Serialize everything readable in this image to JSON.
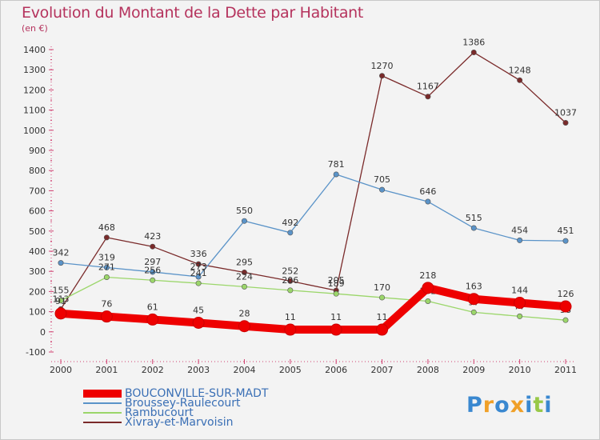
{
  "title": "Evolution du Montant de la Dette par Habitant",
  "subtitle": "(en €)",
  "logo": {
    "letters": [
      "P",
      "r",
      "o",
      "x",
      "i",
      "t",
      "i"
    ],
    "colors": [
      "#3a88d0",
      "#f0a028",
      "#3a88d0",
      "#f0a028",
      "#3a88d0",
      "#98c848",
      "#3a88d0"
    ]
  },
  "chart_data": {
    "type": "line",
    "x": [
      "2000",
      "2001",
      "2002",
      "2003",
      "2004",
      "2005",
      "2006",
      "2007",
      "2008",
      "2009",
      "2010",
      "2011"
    ],
    "ylim": [
      -100,
      1400
    ],
    "yticks": [
      -100,
      0,
      100,
      200,
      300,
      400,
      500,
      600,
      700,
      800,
      900,
      1000,
      1100,
      1200,
      1300,
      1400
    ],
    "grid": false,
    "legend": "bottom-left",
    "series": [
      {
        "name": "Xivray-et-Marvoisin",
        "color": "#7a2a2a",
        "values": [
          113,
          468,
          423,
          336,
          295,
          252,
          205,
          1270,
          1167,
          1386,
          1248,
          1037
        ],
        "labels": [
          "113",
          "468",
          "423",
          "336",
          "295",
          "252",
          "205",
          "1270",
          "1167",
          "1386",
          "1248",
          "1037"
        ]
      },
      {
        "name": "Broussey-Raulecourt",
        "color": "#5a93c8",
        "values": [
          342,
          319,
          297,
          273,
          550,
          492,
          781,
          705,
          646,
          515,
          454,
          451
        ],
        "labels": [
          "342",
          "319",
          "297",
          "273",
          "550",
          "492",
          "781",
          "705",
          "646",
          "515",
          "454",
          "451"
        ]
      },
      {
        "name": "Rambucourt",
        "color": "#9bd66a",
        "values": [
          155,
          271,
          256,
          241,
          224,
          206,
          189,
          170,
          152,
          97,
          77,
          58
        ],
        "labels": [
          "155",
          "271",
          "256",
          "241",
          "224",
          "206",
          "189",
          "170",
          "152",
          "97",
          "77",
          "58"
        ]
      },
      {
        "name": "BOUCONVILLE-SUR-MADT",
        "color": "#ee0000",
        "values": [
          91,
          76,
          61,
          45,
          28,
          11,
          11,
          11,
          218,
          163,
          144,
          126
        ],
        "labels": [
          "91",
          "76",
          "61",
          "45",
          "28",
          "11",
          "11",
          "11",
          "218",
          "163",
          "144",
          "126"
        ]
      }
    ]
  }
}
